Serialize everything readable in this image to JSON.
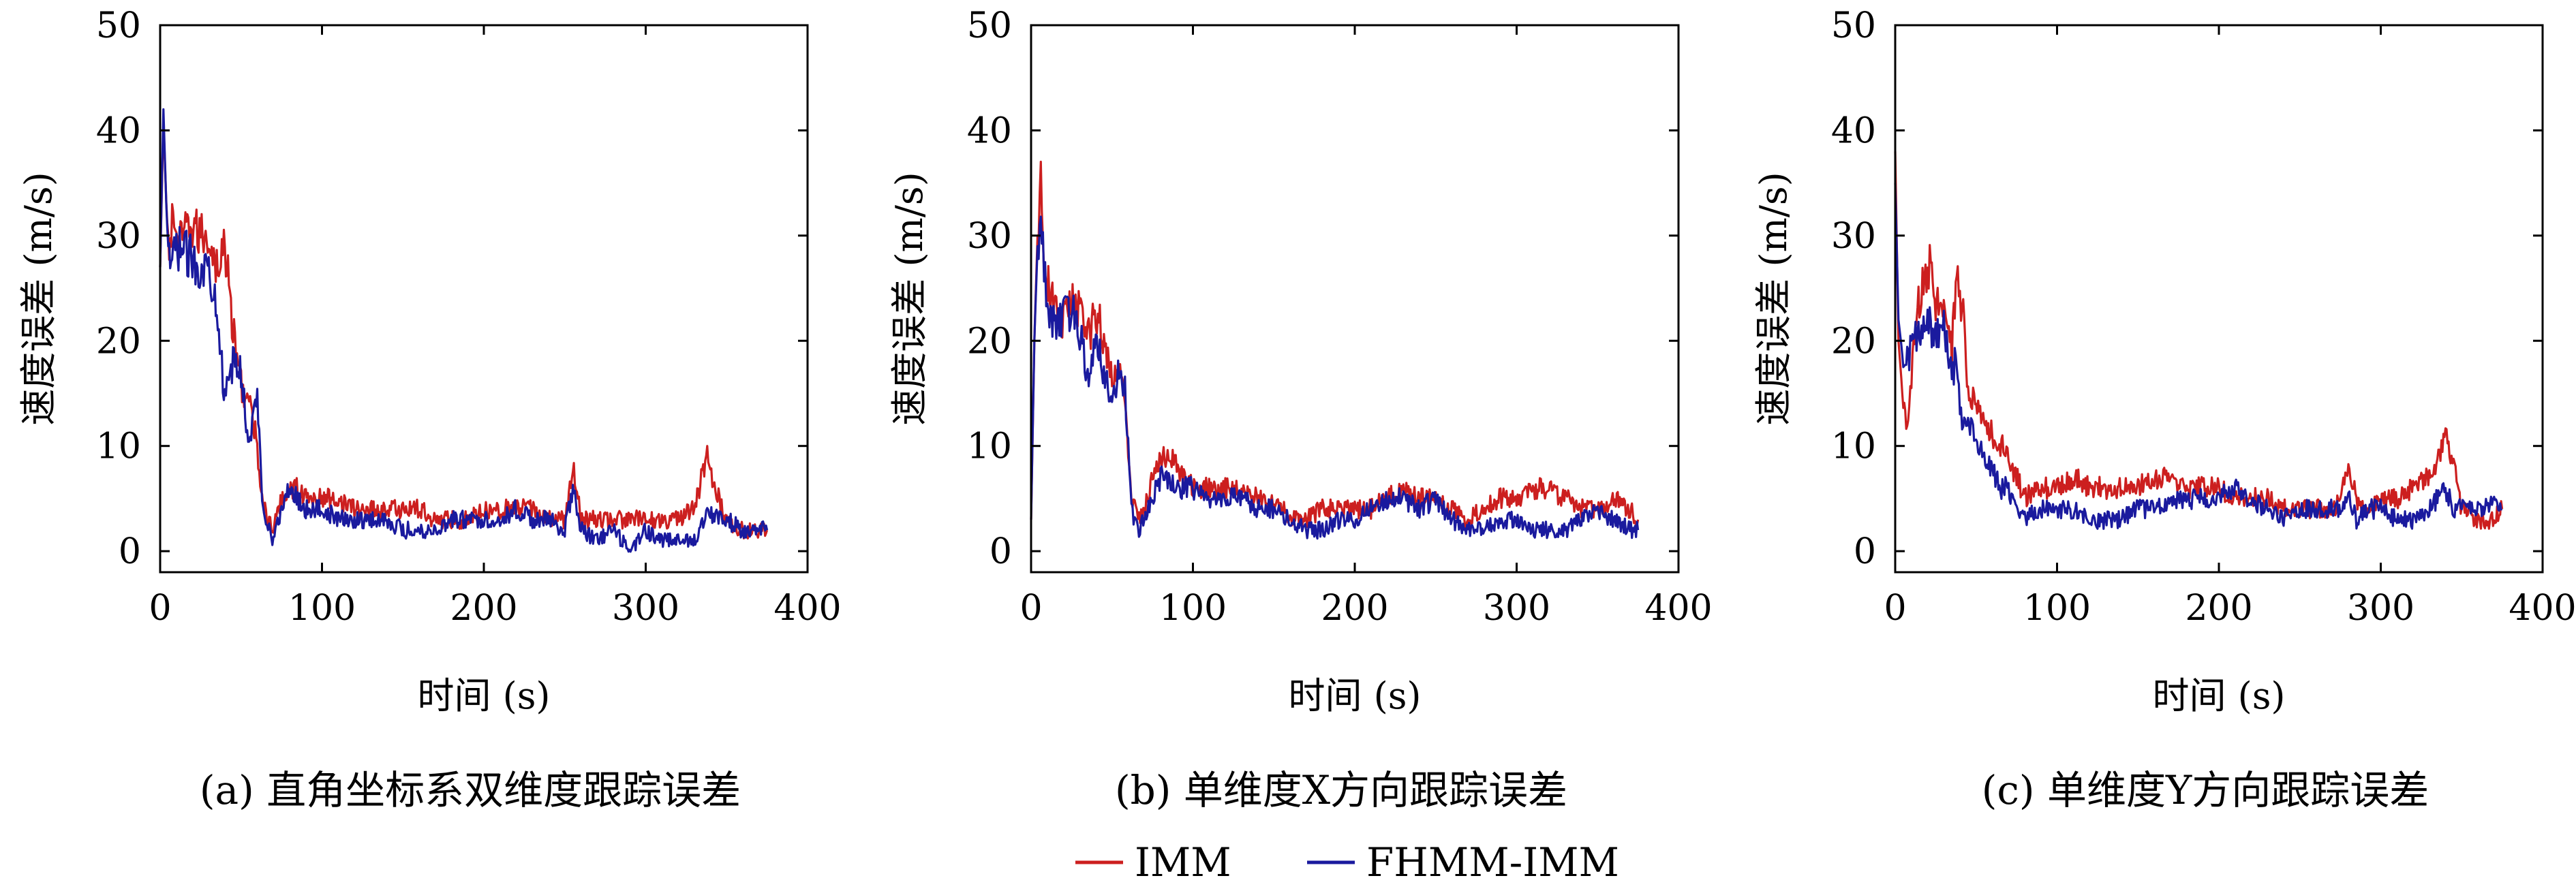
{
  "legend": {
    "items": [
      {
        "label": "IMM",
        "color": "#cc1f1f"
      },
      {
        "label": "FHMM-IMM",
        "color": "#1a1a9e"
      }
    ]
  },
  "chart_data": [
    {
      "type": "line",
      "caption": "(a) 直角坐标系双维度跟踪误差",
      "xlabel": "时间 (s)",
      "ylabel": "速度误差 (m/s)",
      "xlim": [
        0,
        400
      ],
      "ylim": [
        -2,
        50
      ],
      "xticks": [
        0,
        100,
        200,
        300,
        400
      ],
      "yticks": [
        0,
        10,
        20,
        30,
        40,
        50
      ],
      "grid": false,
      "series": [
        {
          "name": "IMM",
          "color": "#cc1f1f",
          "x": [
            0,
            2,
            5,
            8,
            12,
            18,
            25,
            30,
            35,
            40,
            45,
            50,
            55,
            60,
            63,
            66,
            70,
            75,
            80,
            85,
            90,
            100,
            110,
            120,
            130,
            140,
            150,
            160,
            170,
            180,
            190,
            200,
            210,
            220,
            230,
            240,
            250,
            255,
            260,
            270,
            280,
            290,
            300,
            310,
            320,
            330,
            338,
            345,
            350,
            360,
            370,
            375
          ],
          "y": [
            27,
            41,
            28,
            32,
            29,
            31,
            30,
            30,
            27,
            29,
            21,
            16,
            14,
            10,
            5,
            3,
            2,
            5,
            6,
            6,
            5,
            5,
            5,
            4,
            4,
            4,
            4,
            4,
            3,
            3,
            3,
            4,
            4,
            4,
            4,
            3,
            3,
            8,
            3,
            3,
            3,
            3,
            3,
            3,
            3,
            4,
            9,
            5,
            3,
            2,
            2,
            2
          ]
        },
        {
          "name": "FHMM-IMM",
          "color": "#1a1a9e",
          "x": [
            0,
            2,
            5,
            8,
            12,
            18,
            25,
            30,
            35,
            40,
            45,
            50,
            55,
            60,
            63,
            66,
            70,
            75,
            80,
            85,
            90,
            100,
            110,
            120,
            130,
            140,
            150,
            160,
            170,
            180,
            190,
            200,
            210,
            220,
            230,
            240,
            250,
            255,
            260,
            270,
            280,
            290,
            300,
            310,
            320,
            330,
            338,
            345,
            350,
            360,
            370,
            375
          ],
          "y": [
            27,
            42,
            27,
            28,
            29,
            28,
            27,
            27,
            24,
            14,
            18,
            17,
            10,
            15,
            5,
            3,
            1,
            4,
            6,
            5,
            4,
            4,
            3,
            3,
            3,
            3,
            2,
            2,
            2,
            3,
            3,
            3,
            3,
            4,
            3,
            3,
            2,
            6,
            2,
            1,
            2,
            0,
            2,
            1,
            1,
            1,
            4,
            3,
            3,
            2,
            2,
            2
          ]
        }
      ]
    },
    {
      "type": "line",
      "caption": "(b) 单维度X方向跟踪误差",
      "xlabel": "时间 (s)",
      "ylabel": "速度误差 (m/s)",
      "xlim": [
        0,
        400
      ],
      "ylim": [
        -2,
        50
      ],
      "xticks": [
        0,
        100,
        200,
        300,
        400
      ],
      "yticks": [
        0,
        10,
        20,
        30,
        40,
        50
      ],
      "grid": false,
      "series": [
        {
          "name": "IMM",
          "color": "#cc1f1f",
          "x": [
            0,
            2,
            4,
            6,
            8,
            12,
            18,
            25,
            30,
            35,
            40,
            45,
            50,
            55,
            58,
            62,
            66,
            70,
            75,
            80,
            85,
            90,
            100,
            110,
            120,
            130,
            140,
            150,
            160,
            170,
            180,
            190,
            200,
            210,
            220,
            230,
            240,
            250,
            260,
            270,
            280,
            290,
            300,
            310,
            320,
            330,
            340,
            350,
            360,
            370,
            375
          ],
          "y": [
            3,
            20,
            30,
            35,
            26,
            25,
            21,
            24,
            23,
            20,
            23,
            20,
            17,
            17,
            14,
            5,
            3,
            4,
            7,
            9,
            9,
            8,
            6,
            6,
            6,
            6,
            5,
            5,
            3,
            3,
            4,
            4,
            4,
            4,
            5,
            6,
            5,
            5,
            4,
            3,
            4,
            5,
            5,
            6,
            6,
            5,
            4,
            4,
            5,
            4,
            3
          ]
        },
        {
          "name": "FHMM-IMM",
          "color": "#1a1a9e",
          "x": [
            0,
            2,
            4,
            6,
            8,
            12,
            18,
            25,
            30,
            35,
            40,
            45,
            50,
            55,
            58,
            62,
            66,
            70,
            75,
            80,
            85,
            90,
            100,
            110,
            120,
            130,
            140,
            150,
            160,
            170,
            180,
            190,
            200,
            210,
            220,
            230,
            240,
            250,
            260,
            270,
            280,
            290,
            300,
            310,
            320,
            330,
            340,
            350,
            360,
            370,
            375
          ],
          "y": [
            3,
            20,
            29,
            31,
            27,
            22,
            22,
            23,
            21,
            16,
            21,
            17,
            15,
            17,
            15,
            4,
            2,
            3,
            5,
            7,
            7,
            6,
            6,
            5,
            5,
            5,
            4,
            4,
            3,
            2,
            2,
            3,
            3,
            4,
            5,
            5,
            4,
            5,
            3,
            2,
            2,
            3,
            3,
            2,
            2,
            2,
            3,
            4,
            3,
            2,
            2
          ]
        }
      ]
    },
    {
      "type": "line",
      "caption": "(c) 单维度Y方向跟踪误差",
      "xlabel": "时间 (s)",
      "ylabel": "速度误差 (m/s)",
      "xlim": [
        0,
        400
      ],
      "ylim": [
        -2,
        50
      ],
      "xticks": [
        0,
        100,
        200,
        300,
        400
      ],
      "yticks": [
        0,
        10,
        20,
        30,
        40,
        50
      ],
      "grid": false,
      "series": [
        {
          "name": "IMM",
          "color": "#cc1f1f",
          "x": [
            0,
            2,
            5,
            8,
            12,
            15,
            20,
            22,
            25,
            30,
            35,
            38,
            42,
            45,
            50,
            55,
            60,
            65,
            70,
            75,
            80,
            90,
            100,
            110,
            120,
            130,
            140,
            150,
            160,
            170,
            180,
            190,
            200,
            210,
            220,
            230,
            240,
            250,
            260,
            270,
            275,
            280,
            285,
            290,
            300,
            310,
            320,
            330,
            340,
            345,
            350,
            360,
            370,
            375
          ],
          "y": [
            38,
            20,
            14,
            12,
            20,
            24,
            26,
            28,
            23,
            24,
            19,
            27,
            22,
            15,
            14,
            12,
            11,
            10,
            9,
            7,
            5,
            6,
            6,
            7,
            6,
            6,
            6,
            6,
            7,
            7,
            6,
            6,
            6,
            5,
            5,
            5,
            4,
            4,
            4,
            4,
            5,
            8,
            5,
            4,
            5,
            5,
            6,
            7,
            11,
            8,
            4,
            3,
            3,
            4
          ]
        },
        {
          "name": "FHMM-IMM",
          "color": "#1a1a9e",
          "x": [
            0,
            2,
            5,
            8,
            12,
            15,
            20,
            22,
            25,
            30,
            35,
            38,
            42,
            45,
            50,
            55,
            60,
            65,
            70,
            75,
            80,
            90,
            100,
            110,
            120,
            130,
            140,
            150,
            160,
            170,
            180,
            190,
            200,
            210,
            220,
            230,
            240,
            250,
            260,
            270,
            275,
            280,
            285,
            290,
            300,
            310,
            320,
            330,
            340,
            345,
            350,
            360,
            370,
            375
          ],
          "y": [
            35,
            22,
            18,
            18,
            20,
            21,
            22,
            21,
            20,
            21,
            17,
            18,
            11,
            13,
            10,
            9,
            8,
            6,
            6,
            4,
            3,
            4,
            4,
            4,
            3,
            3,
            3,
            4,
            4,
            5,
            5,
            5,
            5,
            6,
            5,
            4,
            3,
            4,
            4,
            4,
            4,
            5,
            3,
            4,
            4,
            3,
            3,
            4,
            6,
            4,
            4,
            4,
            5,
            4
          ]
        }
      ]
    }
  ]
}
